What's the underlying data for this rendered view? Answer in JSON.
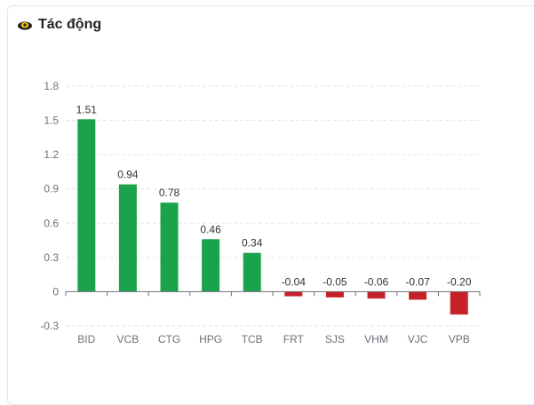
{
  "header": {
    "title": "Tác động",
    "icon": "impact-icon"
  },
  "colors": {
    "positive": "#1aa34a",
    "negative": "#c8212a",
    "grid": "#e6e6e6",
    "axis": "#6e7079"
  },
  "chart_data": {
    "type": "bar",
    "title": "Tác động",
    "xlabel": "",
    "ylabel": "",
    "categories": [
      "BID",
      "VCB",
      "CTG",
      "HPG",
      "TCB",
      "FRT",
      "SJS",
      "VHM",
      "VJC",
      "VPB"
    ],
    "values": [
      1.51,
      0.94,
      0.78,
      0.46,
      0.34,
      -0.04,
      -0.05,
      -0.06,
      -0.07,
      -0.2
    ],
    "value_labels": [
      "1.51",
      "0.94",
      "0.78",
      "0.46",
      "0.34",
      "-0.04",
      "-0.05",
      "-0.06",
      "-0.07",
      "-0.20"
    ],
    "ylim": [
      -0.3,
      1.8
    ],
    "yticks": [
      1.8,
      1.5,
      1.2,
      0.9,
      0.6,
      0.3,
      0,
      -0.3
    ],
    "ytick_labels": [
      "1.8",
      "1.5",
      "1.2",
      "0.9",
      "0.6",
      "0.3",
      "0",
      "-0.3"
    ],
    "grid": true
  }
}
